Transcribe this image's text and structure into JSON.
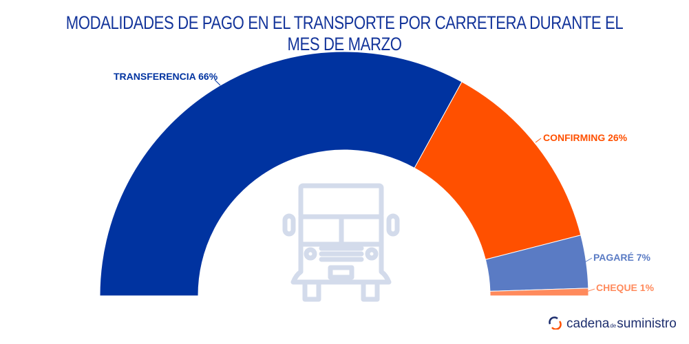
{
  "chart_data": {
    "type": "pie",
    "variant": "semi-donut",
    "title": "MODALIDADES DE PAGO EN EL TRANSPORTE POR CARRETERA DURANTE EL MES DE MARZO",
    "slices": [
      {
        "name": "TRANSFERENCIA",
        "value": 66,
        "label": "TRANSFERENCIA 66%",
        "color": "#0033a0"
      },
      {
        "name": "CONFIRMING",
        "value": 26,
        "label": "CONFIRMING 26%",
        "color": "#ff5000"
      },
      {
        "name": "PAGARÉ",
        "value": 7,
        "label": "PAGARÉ 7%",
        "color": "#5a7bc4"
      },
      {
        "name": "CHEQUE",
        "value": 1,
        "label": "CHEQUE 1%",
        "color": "#ff8a5c"
      }
    ],
    "center_icon": "truck-icon"
  },
  "logo": {
    "part1": "cadena",
    "part2": "de",
    "part3": "suministro",
    "icon": "cycle-arrows-icon"
  }
}
